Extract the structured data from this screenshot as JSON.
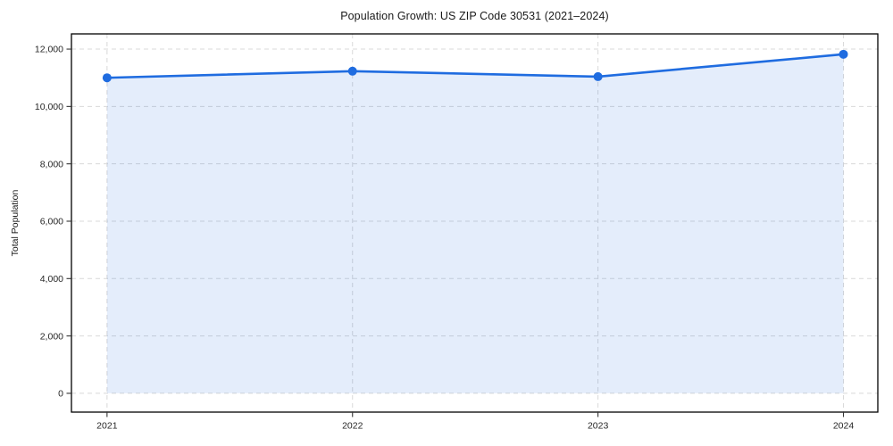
{
  "chart_data": {
    "type": "area",
    "title": "Population Growth: US ZIP Code 30531 (2021–2024)",
    "xlabel": "",
    "ylabel": "Total Population",
    "x": [
      2021,
      2022,
      2023,
      2024
    ],
    "x_tick_labels": [
      "2021",
      "2022",
      "2023",
      "2024"
    ],
    "series": [
      {
        "name": "Total Population",
        "values": [
          11000,
          11230,
          11040,
          11820
        ]
      }
    ],
    "y_ticks": [
      0,
      2000,
      4000,
      6000,
      8000,
      10000,
      12000
    ],
    "y_tick_labels": [
      "0",
      "2,000",
      "4,000",
      "6,000",
      "8,000",
      "10,000",
      "12,000"
    ],
    "xlim": [
      2020.855,
      2024.14
    ],
    "ylim": [
      -655,
      12530
    ],
    "grid": true,
    "grid_style": "dashed",
    "legend": "none",
    "marker": "circle",
    "colors": {
      "line": "#1f6ce0",
      "fill": "rgba(31,108,224,0.12)",
      "grid": "#d9d9d9",
      "spine": "#000000",
      "tick": "#333333",
      "tick_label": "#262626",
      "title": "#1a1a1a",
      "background": "#ffffff"
    }
  }
}
